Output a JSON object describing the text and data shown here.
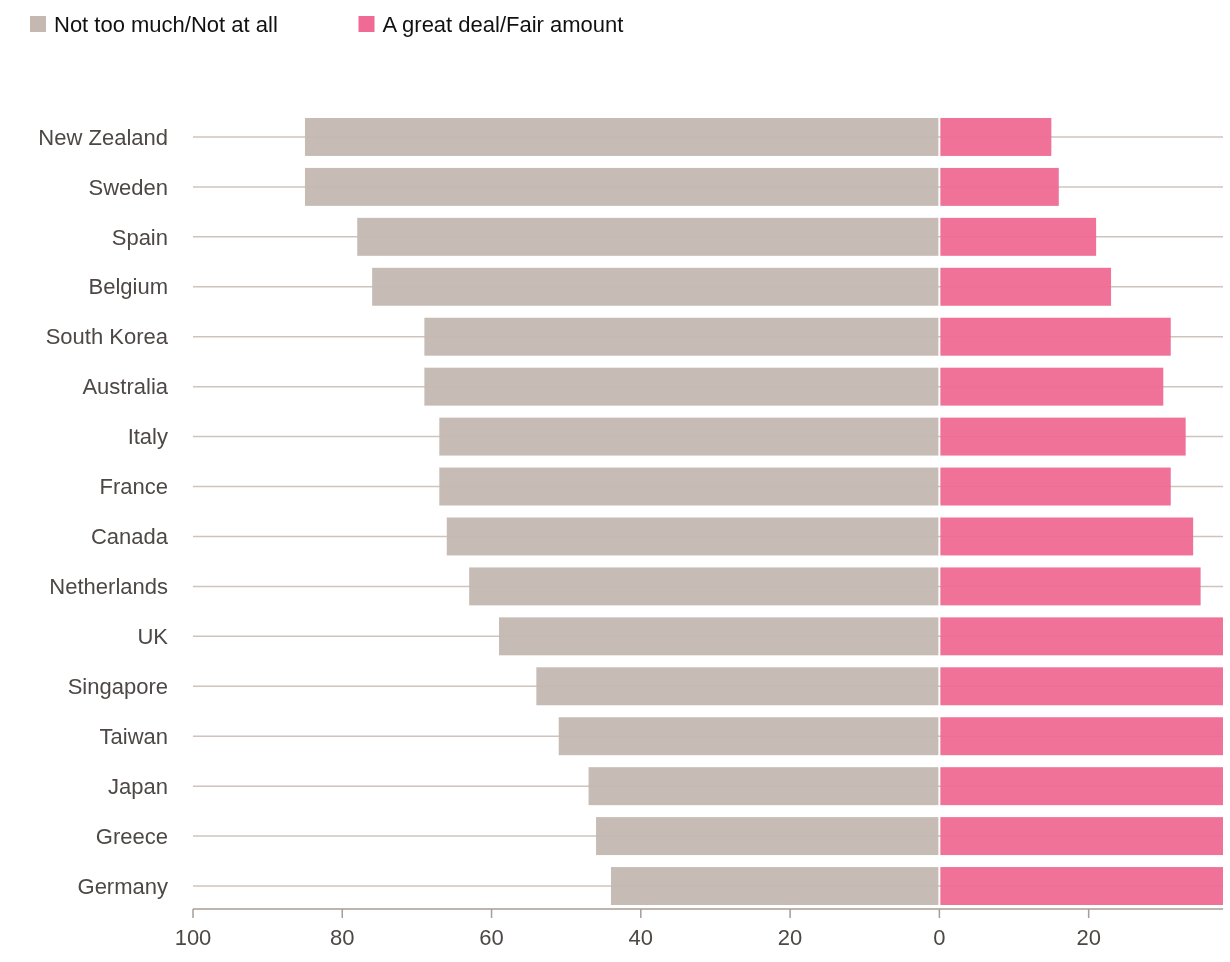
{
  "chart_data": {
    "type": "bar",
    "orientation": "horizontal",
    "stacked": true,
    "categories": [
      "New Zealand",
      "Sweden",
      "Spain",
      "Belgium",
      "South Korea",
      "Australia",
      "Italy",
      "France",
      "Canada",
      "Netherlands",
      "UK",
      "Singapore",
      "Taiwan",
      "Japan",
      "Greece",
      "Germany"
    ],
    "series": [
      {
        "name": "Not too much/Not at all",
        "color": "#c4b8b1",
        "values": [
          -85,
          -85,
          -78,
          -76,
          -69,
          -69,
          -67,
          -67,
          -66,
          -63,
          -59,
          -54,
          -51,
          -47,
          -46,
          -44
        ]
      },
      {
        "name": "A great deal/Fair amount",
        "color": "#ef6a94",
        "values": [
          15,
          16,
          21,
          23,
          31,
          30,
          33,
          31,
          34,
          35,
          38,
          38,
          38,
          38,
          38,
          38
        ]
      }
    ],
    "xlim": [
      -100,
      38
    ],
    "xticks": [
      {
        "value": -100,
        "label": "100"
      },
      {
        "value": -80,
        "label": "80"
      },
      {
        "value": -60,
        "label": "60"
      },
      {
        "value": -40,
        "label": "40"
      },
      {
        "value": -20,
        "label": "20"
      },
      0,
      20
    ],
    "grid": "y",
    "legend": "top left"
  }
}
